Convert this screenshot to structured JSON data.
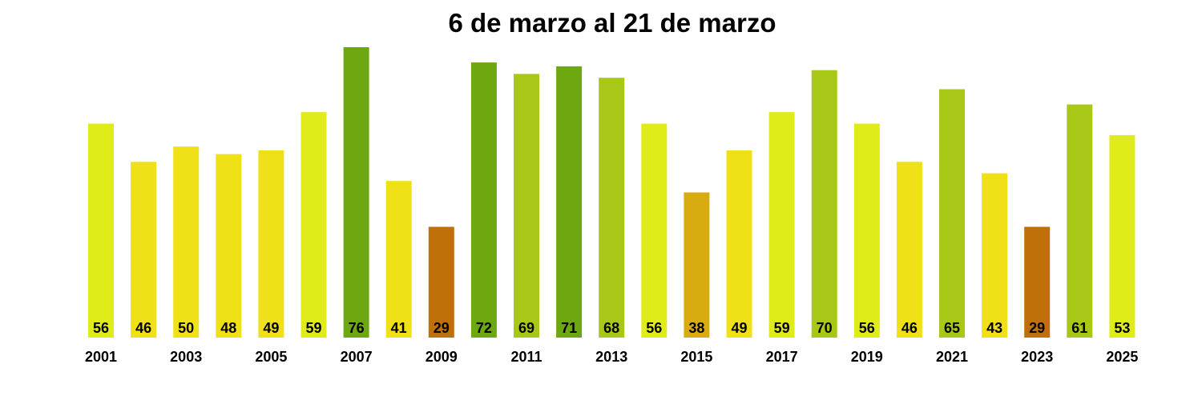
{
  "chart_data": {
    "type": "bar",
    "title": "6 de marzo al 21 de marzo",
    "categories": [
      "2001",
      "2002",
      "2003",
      "2004",
      "2005",
      "2006",
      "2007",
      "2008",
      "2009",
      "2010",
      "2011",
      "2012",
      "2013",
      "2014",
      "2015",
      "2016",
      "2017",
      "2018",
      "2019",
      "2020",
      "2021",
      "2022",
      "2023",
      "2024",
      "2025"
    ],
    "values": [
      56,
      46,
      50,
      48,
      49,
      59,
      76,
      41,
      29,
      72,
      69,
      71,
      68,
      56,
      38,
      49,
      59,
      70,
      56,
      46,
      65,
      43,
      29,
      61,
      53
    ],
    "colors": [
      "#e0ec1a",
      "#f0e018",
      "#f0e018",
      "#f0e018",
      "#f0e018",
      "#e0ec1a",
      "#6da810",
      "#f0e018",
      "#c0700a",
      "#6da810",
      "#a8c818",
      "#6da810",
      "#a8c818",
      "#e0ec1a",
      "#d8ac10",
      "#f0e018",
      "#e0ec1a",
      "#a8c818",
      "#e0ec1a",
      "#f0e018",
      "#a8c818",
      "#f0e018",
      "#c0700a",
      "#a8c818",
      "#e0ec1a"
    ],
    "tick_labels": [
      "2001",
      "2003",
      "2005",
      "2007",
      "2009",
      "2011",
      "2013",
      "2015",
      "2017",
      "2019",
      "2021",
      "2023",
      "2025"
    ],
    "ylim": [
      0,
      76
    ],
    "grid": false,
    "legend": "none"
  }
}
